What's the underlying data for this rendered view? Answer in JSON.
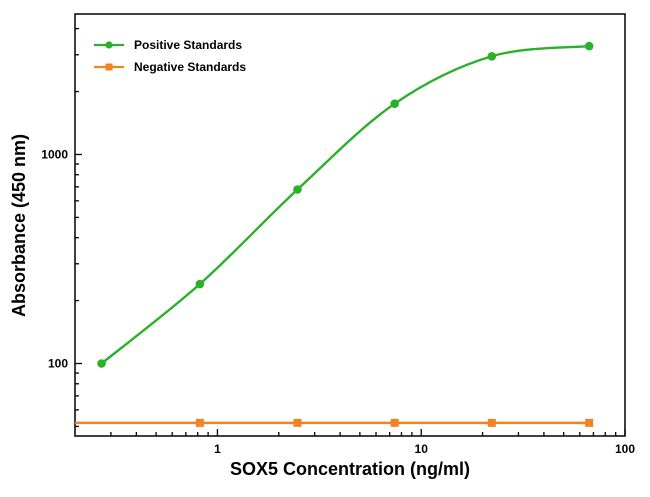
{
  "chart_data": {
    "type": "line",
    "title": "",
    "xlabel": "SOX5 Concentration (ng/ml)",
    "ylabel": "Absorbance (450 nm)",
    "x_scale": "log",
    "y_scale": "log",
    "xlim": [
      0.2,
      100
    ],
    "ylim": [
      45,
      4700
    ],
    "grid": false,
    "frame_color": "#000000",
    "background": "#ffffff",
    "tick_label_color": "#000000",
    "x_ticks": {
      "major": [
        {
          "value": 1,
          "label": "1"
        },
        {
          "value": 10,
          "label": "10"
        },
        {
          "value": 100,
          "label": "100"
        }
      ],
      "minor": [
        0.3,
        0.4,
        0.5,
        0.6,
        0.7,
        0.8,
        0.9,
        2,
        3,
        4,
        5,
        6,
        7,
        8,
        9,
        20,
        30,
        40,
        50,
        60,
        70,
        80,
        90
      ]
    },
    "y_ticks": {
      "major": [
        {
          "value": 100,
          "label": "100"
        },
        {
          "value": 1000,
          "label": "1000"
        }
      ],
      "minor": [
        50,
        60,
        70,
        80,
        90,
        200,
        300,
        400,
        500,
        600,
        700,
        800,
        900,
        2000,
        3000,
        4000
      ]
    },
    "legend": {
      "position": "top-left"
    },
    "series": [
      {
        "name": "Positive Standards",
        "color": "#2bb02b",
        "marker": "circle",
        "smooth": true,
        "extend_left": false,
        "x": [
          0.27,
          0.82,
          2.47,
          7.41,
          22.2,
          66.7
        ],
        "y": [
          100,
          240,
          680,
          1750,
          2950,
          3300
        ]
      },
      {
        "name": "Negative Standards",
        "color": "#f28222",
        "marker": "square",
        "smooth": false,
        "extend_left": true,
        "x": [
          0.82,
          2.47,
          7.41,
          22.2,
          66.7
        ],
        "y": [
          52,
          52,
          52,
          52,
          52
        ]
      }
    ]
  }
}
